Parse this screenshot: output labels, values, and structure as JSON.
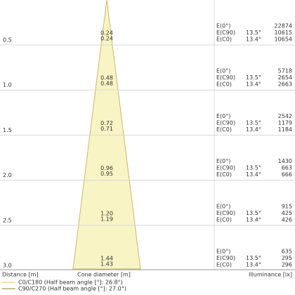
{
  "rows": [
    {
      "distance": "0.5",
      "diameters": [
        "0.24",
        "0.24"
      ],
      "illuminance": [
        {
          "label": "E(0°)",
          "value": "22874"
        },
        {
          "label": "E(C90)",
          "angle": "13.5°",
          "value": "10615"
        },
        {
          "label": "E(C0)",
          "angle": "13.4°",
          "value": "10654"
        }
      ]
    },
    {
      "distance": "1.0",
      "diameters": [
        "0.48",
        "0.48"
      ],
      "illuminance": [
        {
          "label": "E(0°)",
          "value": "5718"
        },
        {
          "label": "E(C90)",
          "angle": "13.5°",
          "value": "2654"
        },
        {
          "label": "E(C0)",
          "angle": "13.4°",
          "value": "2663"
        }
      ]
    },
    {
      "distance": "1.5",
      "diameters": [
        "0.72",
        "0.71"
      ],
      "illuminance": [
        {
          "label": "E(0°)",
          "value": "2542"
        },
        {
          "label": "E(C90)",
          "angle": "13.5°",
          "value": "1179"
        },
        {
          "label": "E(C0)",
          "angle": "13.4°",
          "value": "1184"
        }
      ]
    },
    {
      "distance": "2.0",
      "diameters": [
        "0.96",
        "0.95"
      ],
      "illuminance": [
        {
          "label": "E(0°)",
          "value": "1430"
        },
        {
          "label": "E(C90)",
          "angle": "13.5°",
          "value": "663"
        },
        {
          "label": "E(C0)",
          "angle": "13.4°",
          "value": "666"
        }
      ]
    },
    {
      "distance": "2.5",
      "diameters": [
        "1.20",
        "1.19"
      ],
      "illuminance": [
        {
          "label": "E(0°)",
          "value": "915"
        },
        {
          "label": "E(C90)",
          "angle": "13.5°",
          "value": "425"
        },
        {
          "label": "E(C0)",
          "angle": "13.4°",
          "value": "426"
        }
      ]
    },
    {
      "distance": "3.0",
      "diameters": [
        "1.44",
        "1.43"
      ],
      "illuminance": [
        {
          "label": "E(0°)",
          "value": "635"
        },
        {
          "label": "E(C90)",
          "angle": "13.5°",
          "value": "295"
        },
        {
          "label": "E(C0)",
          "angle": "13.4°",
          "value": "296"
        }
      ]
    }
  ],
  "footer": {
    "distance": "Distance [m]",
    "diameter": "Cone diameter [m]",
    "illuminance": "Illuminance [lx]"
  },
  "legend": [
    {
      "label": "C0/C180 (Half beam angle [°]: 26.8°)",
      "color": "#e8d890"
    },
    {
      "label": "C90/C270 (Half beam angle [°]: 27.0°)",
      "color": "#b8a868"
    }
  ]
}
